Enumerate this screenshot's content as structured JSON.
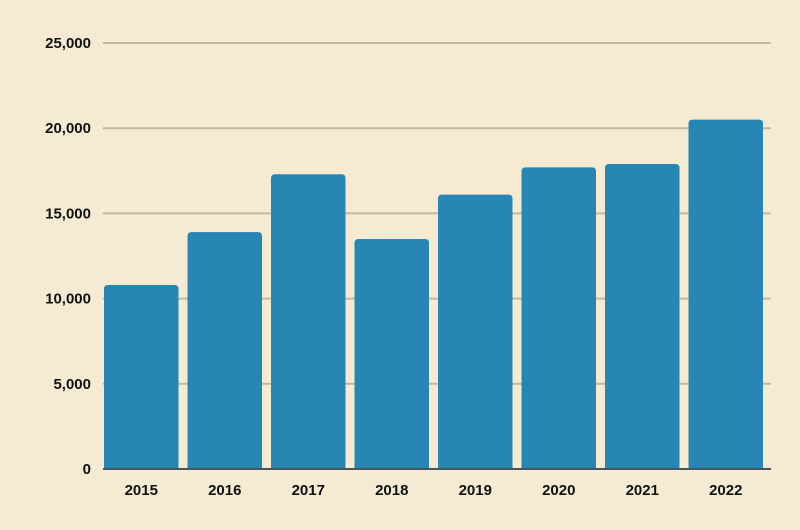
{
  "chart_data": {
    "type": "bar",
    "title": "",
    "xlabel": "",
    "ylabel": "",
    "categories": [
      "2015",
      "2016",
      "2017",
      "2018",
      "2019",
      "2020",
      "2021",
      "2022"
    ],
    "values": [
      10800,
      13900,
      17300,
      13500,
      16100,
      17700,
      17900,
      20500
    ],
    "ylim": [
      0,
      25000
    ],
    "yticks": [
      0,
      5000,
      10000,
      15000,
      20000,
      25000
    ],
    "ytick_labels": [
      "0",
      "5,000",
      "10,000",
      "15,000",
      "20,000",
      "25,000"
    ],
    "grid": true,
    "legend": "none",
    "colors": {
      "bar": "#2886b4",
      "grid": "#c7b89a",
      "axis": "#4a5560",
      "background": "#f5ead2",
      "text": "#111111"
    }
  }
}
